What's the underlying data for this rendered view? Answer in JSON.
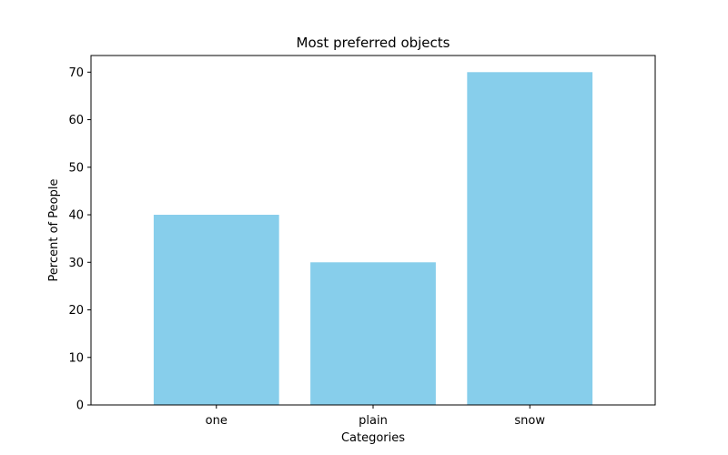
{
  "chart_data": {
    "type": "bar",
    "title": "Most preferred objects",
    "xlabel": "Categories",
    "ylabel": "Percent of People",
    "categories": [
      "one",
      "plain",
      "snow"
    ],
    "values": [
      40,
      30,
      70
    ],
    "ylim": [
      0,
      73.5
    ],
    "yticks": [
      0,
      10,
      20,
      30,
      40,
      50,
      60,
      70
    ],
    "bar_color": "#87CEEB",
    "grid": false,
    "legend": "none"
  }
}
